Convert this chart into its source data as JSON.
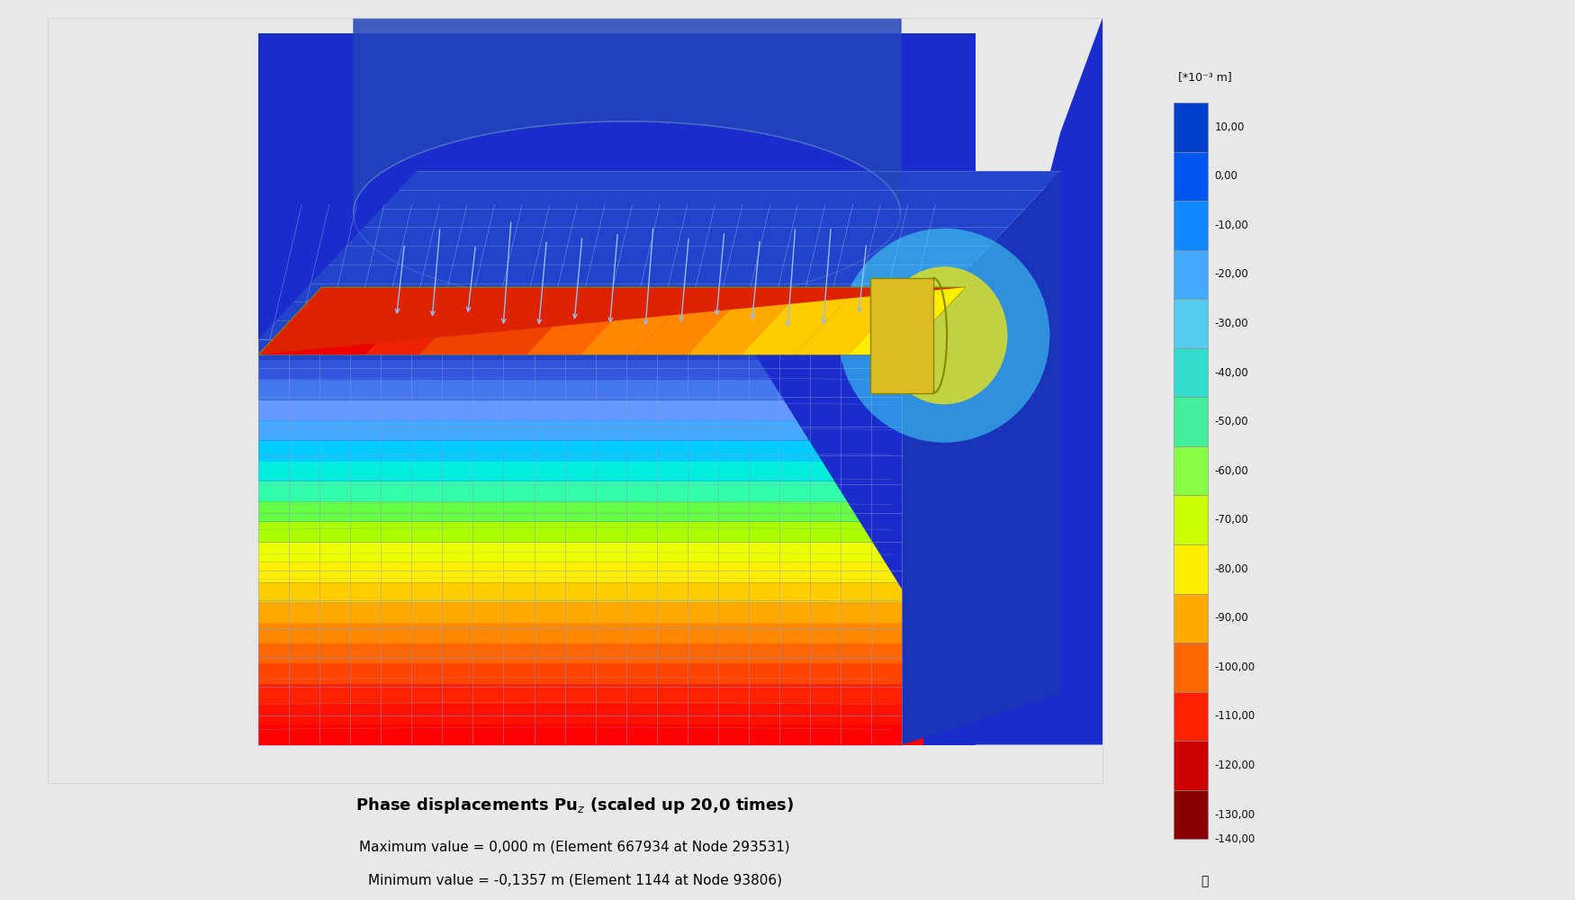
{
  "bg_outer": "#e8e8e8",
  "bg_plot": "#f5f5f5",
  "far_bg": "#1a3acc",
  "soil_blue_deep": "#1a2dcc",
  "soil_blue_mid": "#2244ee",
  "soil_blue_light": "#3366ff",
  "mesh_line_color": "#8899cc",
  "mesh_line_color2": "#aabbdd",
  "tank_yellow": "#ccaa00",
  "tank_yellow2": "#ddbb22",
  "arrow_color": "#88aaee",
  "colorbar_values": [
    10.0,
    0.0,
    -10.0,
    -20.0,
    -30.0,
    -40.0,
    -50.0,
    -60.0,
    -70.0,
    -80.0,
    -90.0,
    -100.0,
    -110.0,
    -120.0,
    -130.0,
    -140.0
  ],
  "colorbar_colors_hex": [
    "#003fcc",
    "#0055ee",
    "#1188ff",
    "#44aaff",
    "#55ccee",
    "#33ddcc",
    "#44ee99",
    "#88ff44",
    "#ccff00",
    "#ffee00",
    "#ffaa00",
    "#ff6600",
    "#ff2200",
    "#cc0000",
    "#880000",
    "#550000"
  ],
  "caption_line1_bold": "Phase displacements Pu",
  "caption_subscript": "z",
  "caption_line1_rest": " (scaled up 20,0 times)",
  "caption_line2": "Maximum value = 0,000 m (Element 667934 at Node 293531)",
  "caption_line3": "Minimum value = -0,1357 m (Element 1144 at Node 93806)",
  "colorbar_label": "[*10⁻³ m]",
  "settlement_colors": [
    "#ff0000",
    "#ff1100",
    "#ff2200",
    "#ff4400",
    "#ff6600",
    "#ff8800",
    "#ffaa00",
    "#ffcc00",
    "#ffee00",
    "#eeff00",
    "#aafe00",
    "#66ff44",
    "#33ffaa",
    "#00eedd",
    "#00ccff",
    "#44aaff",
    "#6699ff",
    "#4477ee",
    "#3355dd",
    "#2244cc"
  ]
}
